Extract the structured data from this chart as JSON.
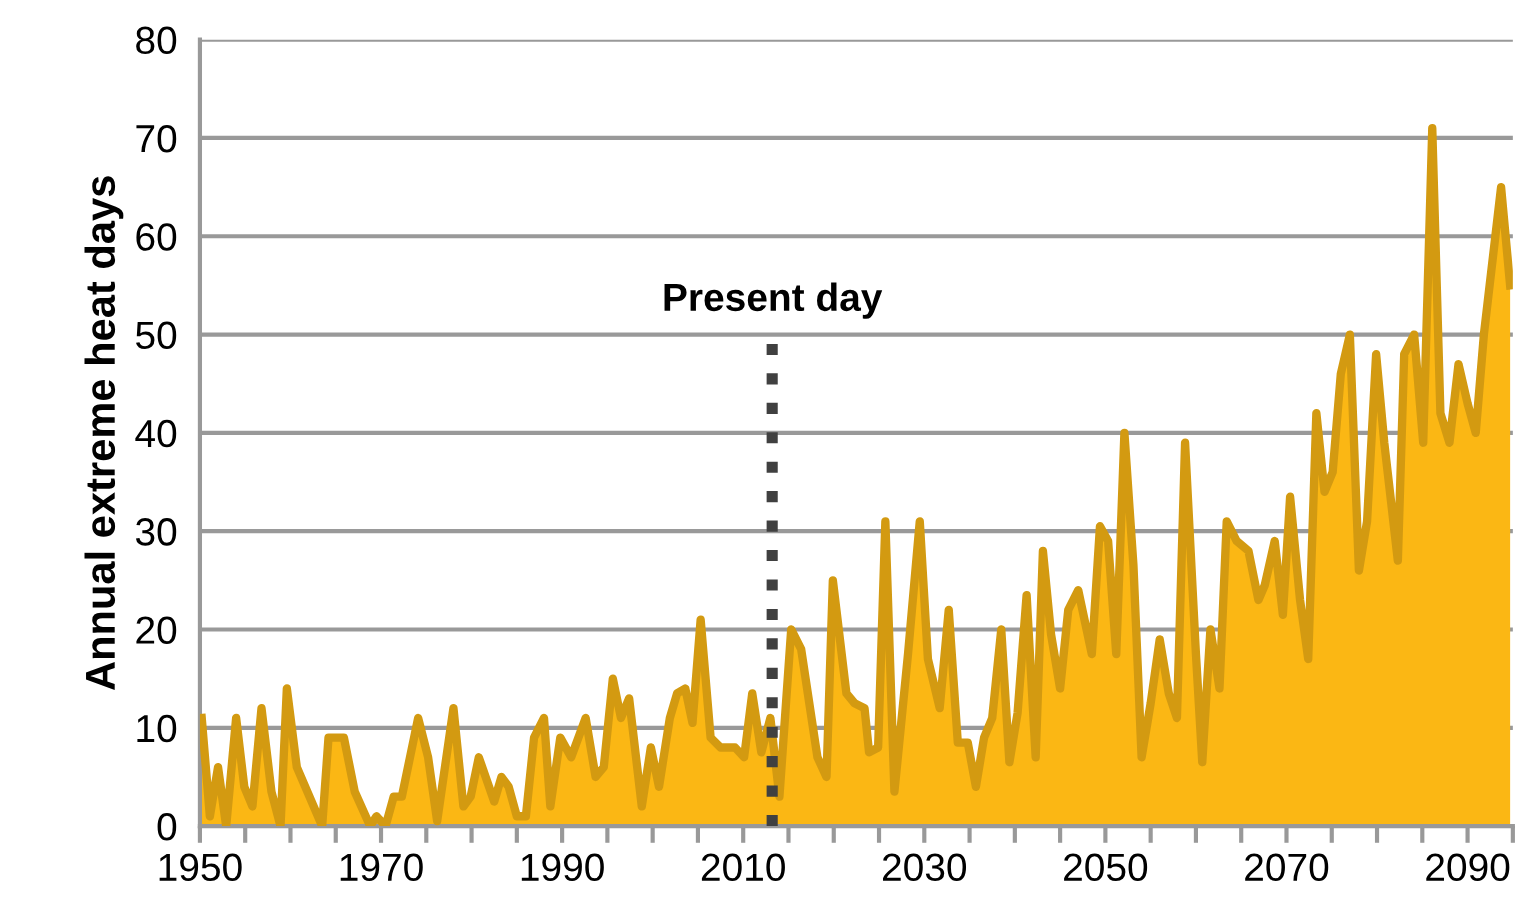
{
  "chart_data": {
    "type": "area",
    "ylabel": "Annual extreme heat days",
    "xlim": [
      1950,
      2095
    ],
    "ylim": [
      0,
      80
    ],
    "xticks": [
      1950,
      {
        "value": 1955,
        "label": null
      },
      {
        "value": 1960,
        "label": null
      },
      {
        "value": 1965,
        "label": null
      },
      1970,
      {
        "value": 1975,
        "label": null
      },
      {
        "value": 1980,
        "label": null
      },
      {
        "value": 1985,
        "label": null
      },
      1990,
      {
        "value": 1995,
        "label": null
      },
      {
        "value": 2000,
        "label": null
      },
      {
        "value": 2005,
        "label": null
      },
      2010,
      {
        "value": 2015,
        "label": null
      },
      {
        "value": 2020,
        "label": null
      },
      {
        "value": 2025,
        "label": null
      },
      2030,
      {
        "value": 2035,
        "label": null
      },
      {
        "value": 2040,
        "label": null
      },
      {
        "value": 2045,
        "label": null
      },
      2050,
      {
        "value": 2055,
        "label": null
      },
      {
        "value": 2060,
        "label": null
      },
      {
        "value": 2065,
        "label": null
      },
      2070,
      {
        "value": 2075,
        "label": null
      },
      {
        "value": 2080,
        "label": null
      },
      {
        "value": 2085,
        "label": null
      },
      2090,
      {
        "value": 2095,
        "label": null
      }
    ],
    "yticks": [
      0,
      10,
      20,
      30,
      40,
      50,
      60,
      70,
      80
    ],
    "grid": "y",
    "legend": false,
    "ref_lines": [
      {
        "axis": "x",
        "value": 2013.2,
        "label": "Present day",
        "color": "#404040",
        "line_style": "dotted"
      }
    ],
    "series": [
      {
        "color": "#fbb714",
        "x": [
          1950.2,
          1951.1,
          1952.0,
          1952.9,
          1954.0,
          1954.9,
          1955.8,
          1956.8,
          1957.9,
          1958.9,
          1959.6,
          1960.7,
          1963.5,
          1964.2,
          1965.9,
          1967.1,
          1968.8,
          1969.5,
          1970.5,
          1971.4,
          1972.3,
          1974.1,
          1975.2,
          1976.2,
          1978.0,
          1979.1,
          1979.9,
          1980.8,
          1982.5,
          1983.3,
          1984.1,
          1985.0,
          1986.0,
          1986.9,
          1988.0,
          1988.7,
          1989.8,
          1991.0,
          1992.6,
          1993.7,
          1994.6,
          1995.6,
          1996.5,
          1997.4,
          1998.8,
          1999.8,
          2000.7,
          2001.9,
          2002.7,
          2003.6,
          2004.4,
          2005.3,
          2006.4,
          2007.5,
          2009.1,
          2010.1,
          2011.0,
          2012.0,
          2013.0,
          2014.0,
          2015.3,
          2016.4,
          2018.2,
          2019.2,
          2019.9,
          2021.4,
          2022.3,
          2023.4,
          2023.9,
          2024.9,
          2025.7,
          2026.7,
          2028.2,
          2029.5,
          2030.4,
          2031.7,
          2032.7,
          2033.7,
          2034.8,
          2035.7,
          2036.6,
          2037.5,
          2038.5,
          2039.4,
          2040.3,
          2041.3,
          2042.3,
          2043.1,
          2044.0,
          2045.0,
          2045.9,
          2047.0,
          2048.5,
          2049.4,
          2050.3,
          2051.2,
          2052.1,
          2053.1,
          2054.0,
          2055.0,
          2056.0,
          2057.0,
          2057.9,
          2058.8,
          2060.0,
          2060.7,
          2061.6,
          2062.6,
          2063.4,
          2064.5,
          2065.8,
          2066.9,
          2067.6,
          2068.7,
          2069.6,
          2070.4,
          2071.5,
          2072.4,
          2073.3,
          2074.2,
          2075.1,
          2076.0,
          2077.0,
          2078.0,
          2078.9,
          2079.9,
          2080.8,
          2082.3,
          2083.0,
          2084.1,
          2085.1,
          2086.1,
          2087.0,
          2088.0,
          2089.0,
          2090.0,
          2090.9,
          2091.8,
          2093.7,
          2094.7
        ],
        "values": [
          11,
          1,
          6,
          0,
          11,
          4,
          2,
          12,
          3.5,
          0,
          14,
          6,
          0,
          9,
          9,
          3.5,
          0,
          1,
          0,
          3,
          3,
          11,
          7,
          0.5,
          12,
          2,
          3,
          7,
          2.5,
          5,
          4,
          1,
          1,
          9,
          11,
          2,
          9,
          7,
          11,
          5,
          6,
          15,
          11,
          13,
          2,
          8,
          4,
          11,
          13.5,
          14,
          10.5,
          21,
          9,
          8,
          8,
          7,
          13.5,
          7.5,
          11,
          3,
          20,
          18,
          7,
          5,
          25,
          13.5,
          12.5,
          12,
          7.5,
          8,
          31,
          3.5,
          17.5,
          31,
          17,
          12,
          22,
          8.5,
          8.5,
          4,
          9,
          11,
          20,
          6.5,
          11.5,
          23.5,
          7,
          28,
          19.5,
          14,
          22,
          24,
          17.5,
          30.5,
          29,
          17.5,
          40,
          26.5,
          7,
          12.5,
          19,
          13.5,
          11,
          39,
          17.5,
          6.5,
          20,
          14,
          31,
          29,
          28,
          23,
          24.5,
          29,
          21.5,
          33.5,
          23,
          17,
          42,
          34,
          36,
          46,
          50,
          26,
          31,
          48,
          39,
          27,
          48,
          50,
          39,
          71,
          42,
          39,
          47,
          43,
          40,
          50,
          65,
          55
        ]
      }
    ]
  }
}
